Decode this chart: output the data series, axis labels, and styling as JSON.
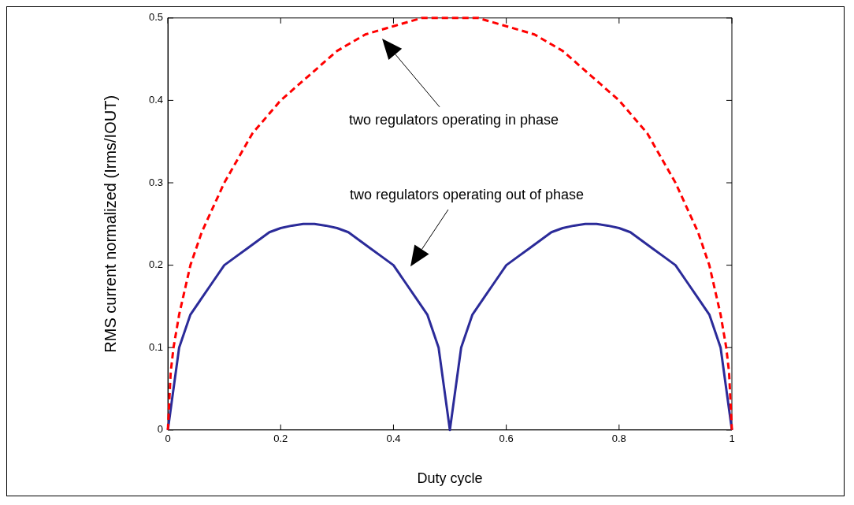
{
  "chart_data": {
    "type": "line",
    "xlabel": "Duty cycle",
    "ylabel": "RMS current normalized (Irms/IOUT)",
    "xlim": [
      0,
      1
    ],
    "ylim": [
      0,
      0.5
    ],
    "xticks": [
      0,
      0.2,
      0.4,
      0.6,
      0.8,
      1
    ],
    "yticks": [
      0,
      0.1,
      0.2,
      0.3,
      0.4,
      0.5
    ],
    "grid": false,
    "legend": false,
    "marker": "none",
    "series": [
      {
        "color": "#ff0000",
        "line_style": "dashed",
        "x": [
          0,
          0.005,
          0.01,
          0.02,
          0.04,
          0.06,
          0.1,
          0.15,
          0.2,
          0.25,
          0.3,
          0.35,
          0.4,
          0.45,
          0.5,
          0.55,
          0.6,
          0.65,
          0.7,
          0.75,
          0.8,
          0.85,
          0.9,
          0.94,
          0.96,
          0.98,
          0.99,
          0.995,
          1
        ],
        "values": [
          0,
          0.07,
          0.1,
          0.14,
          0.2,
          0.24,
          0.3,
          0.36,
          0.4,
          0.43,
          0.46,
          0.48,
          0.49,
          0.5,
          0.5,
          0.5,
          0.49,
          0.48,
          0.46,
          0.43,
          0.4,
          0.36,
          0.3,
          0.24,
          0.2,
          0.14,
          0.1,
          0.07,
          0
        ]
      },
      {
        "color": "#2b2b99",
        "line_style": "solid",
        "x": [
          0,
          0.02,
          0.04,
          0.06,
          0.08,
          0.1,
          0.12,
          0.14,
          0.16,
          0.18,
          0.2,
          0.22,
          0.24,
          0.26,
          0.28,
          0.3,
          0.32,
          0.34,
          0.36,
          0.38,
          0.4,
          0.42,
          0.44,
          0.46,
          0.48,
          0.5,
          0.52,
          0.54,
          0.56,
          0.58,
          0.6,
          0.62,
          0.64,
          0.66,
          0.68,
          0.7,
          0.72,
          0.74,
          0.76,
          0.78,
          0.8,
          0.82,
          0.84,
          0.86,
          0.88,
          0.9,
          0.92,
          0.94,
          0.96,
          0.98,
          1
        ],
        "values": [
          0,
          0.1,
          0.14,
          0.16,
          0.18,
          0.2,
          0.21,
          0.22,
          0.23,
          0.24,
          0.245,
          0.248,
          0.25,
          0.25,
          0.248,
          0.245,
          0.24,
          0.23,
          0.22,
          0.21,
          0.2,
          0.18,
          0.16,
          0.14,
          0.1,
          0,
          0.1,
          0.14,
          0.16,
          0.18,
          0.2,
          0.21,
          0.22,
          0.23,
          0.24,
          0.245,
          0.248,
          0.25,
          0.25,
          0.248,
          0.245,
          0.24,
          0.23,
          0.22,
          0.21,
          0.2,
          0.18,
          0.16,
          0.14,
          0.1,
          0
        ]
      }
    ],
    "annotations": [
      "two regulators operating in phase",
      "two regulators operating out of phase"
    ]
  }
}
